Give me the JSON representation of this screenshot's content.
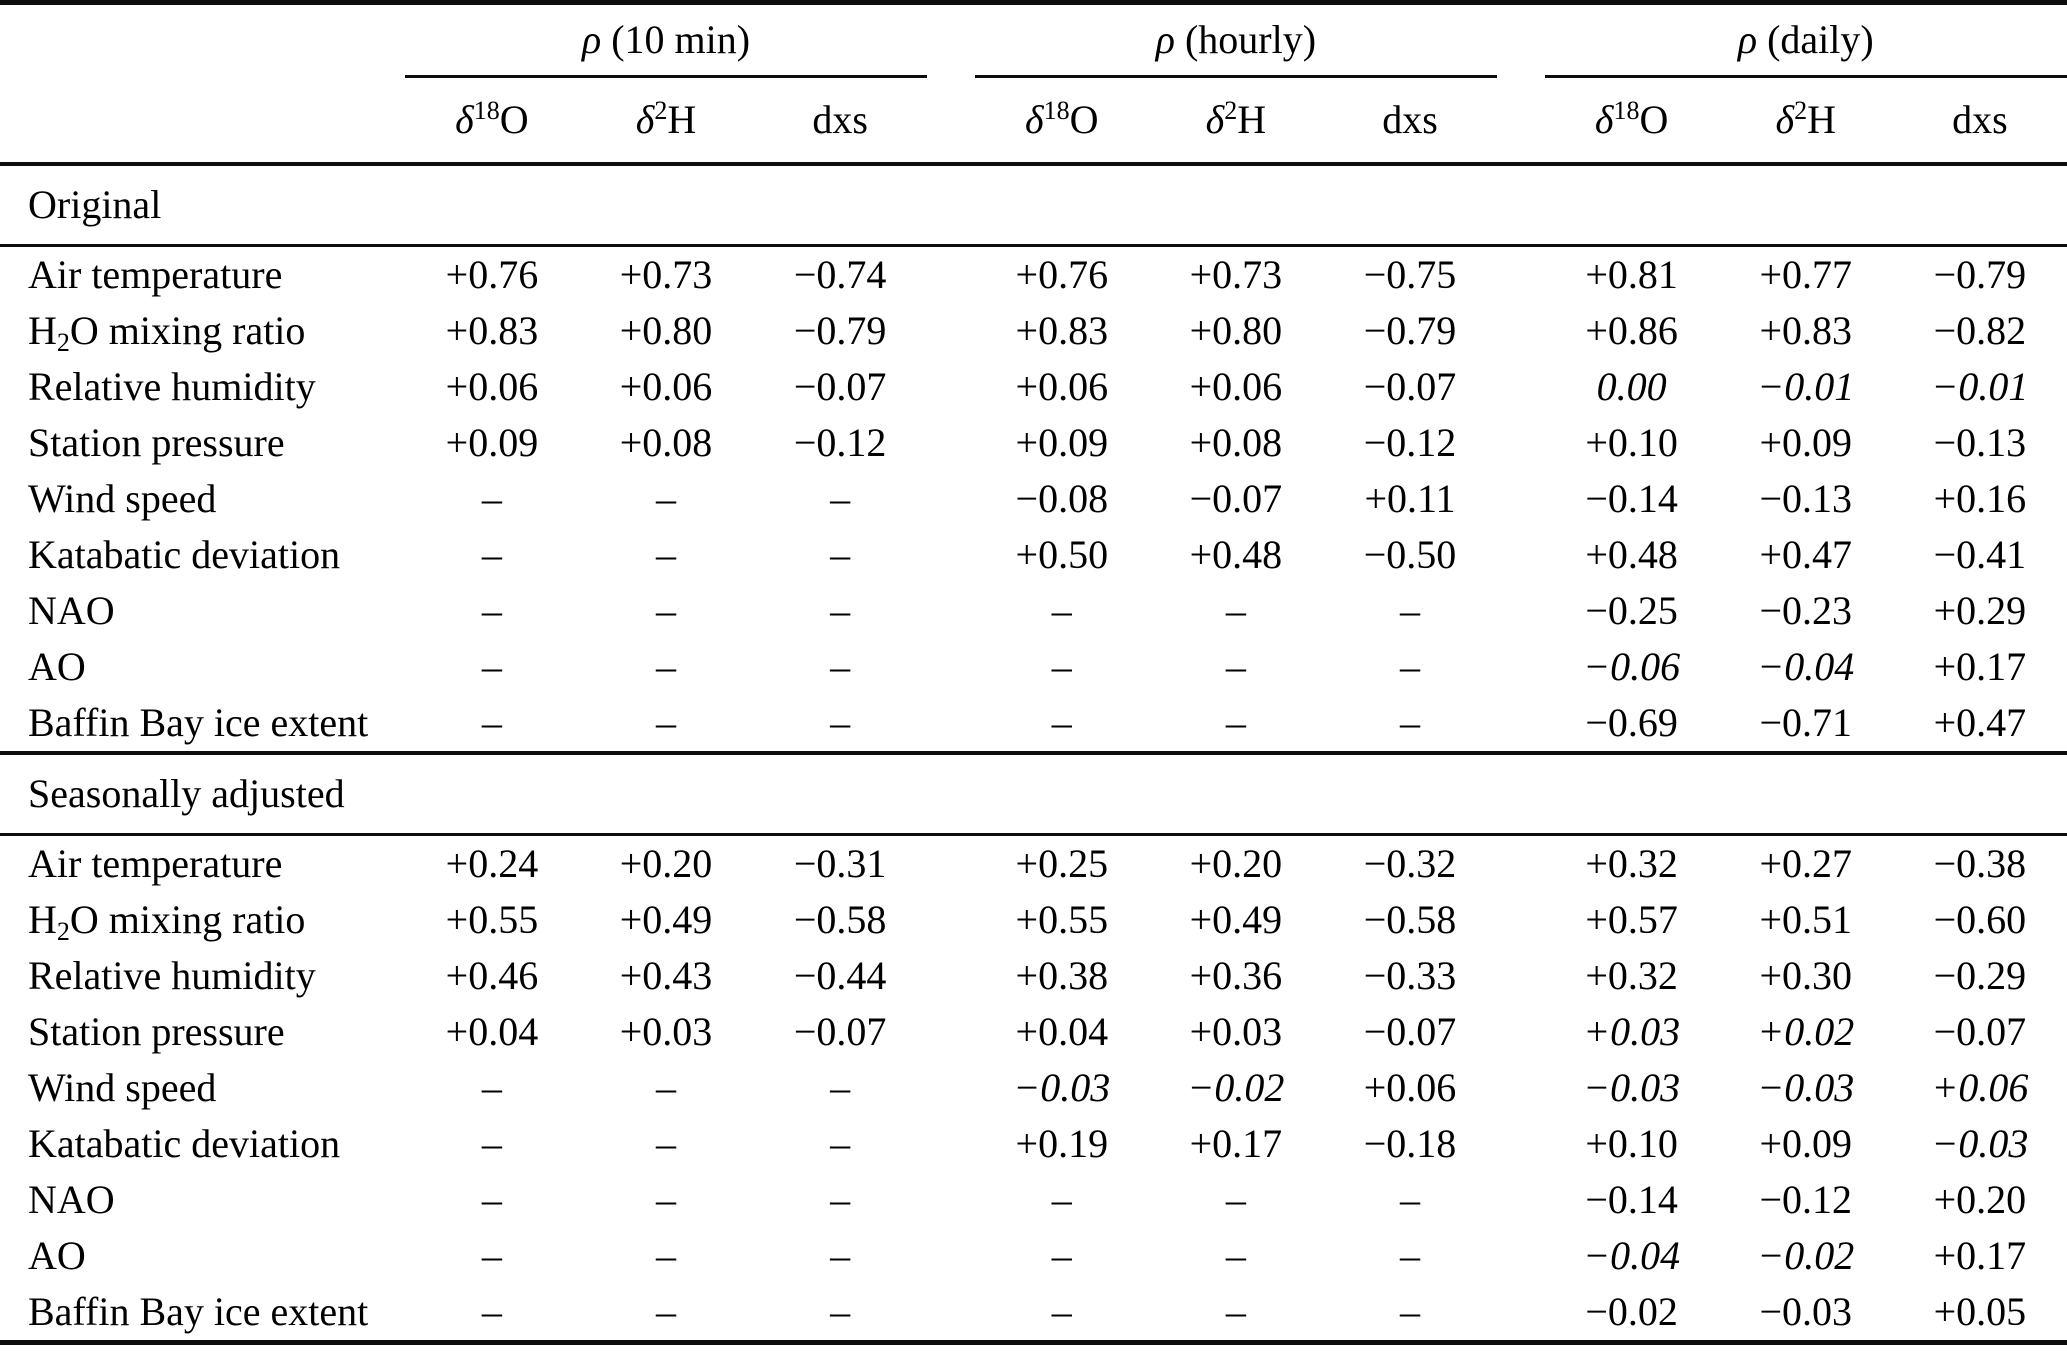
{
  "table": {
    "groups": [
      {
        "rho": "ρ",
        "rest": " (10 min)"
      },
      {
        "rho": "ρ",
        "rest": " (hourly)"
      },
      {
        "rho": "ρ",
        "rest": " (daily)"
      }
    ],
    "subcolumns": [
      {
        "pre": "δ",
        "sup": "18",
        "post": "O"
      },
      {
        "pre": "δ",
        "sup": "2",
        "post": "H"
      },
      {
        "pre": "dxs",
        "sup": "",
        "post": ""
      }
    ],
    "missing_marker": "–",
    "sections": [
      {
        "title": "Original",
        "rows": [
          {
            "label": "Air temperature",
            "cells": [
              "+0.76",
              "+0.73",
              "−0.74",
              "+0.76",
              "+0.73",
              "−0.75",
              "+0.81",
              "+0.77",
              "−0.79"
            ]
          },
          {
            "label": "H2O mixing ratio",
            "label_parts": [
              {
                "t": "H"
              },
              {
                "t": "2",
                "sub": true
              },
              {
                "t": "O mixing ratio"
              }
            ],
            "cells": [
              "+0.83",
              "+0.80",
              "−0.79",
              "+0.83",
              "+0.80",
              "−0.79",
              "+0.86",
              "+0.83",
              "−0.82"
            ]
          },
          {
            "label": "Relative humidity",
            "cells": [
              "+0.06",
              "+0.06",
              "−0.07",
              "+0.06",
              "+0.06",
              "−0.07",
              {
                "v": "0.00",
                "i": true
              },
              {
                "v": "−0.01",
                "i": true
              },
              {
                "v": "−0.01",
                "i": true
              }
            ]
          },
          {
            "label": "Station pressure",
            "cells": [
              "+0.09",
              "+0.08",
              "−0.12",
              "+0.09",
              "+0.08",
              "−0.12",
              "+0.10",
              "+0.09",
              "−0.13"
            ]
          },
          {
            "label": "Wind speed",
            "cells": [
              "–",
              "–",
              "–",
              "−0.08",
              "−0.07",
              "+0.11",
              "−0.14",
              "−0.13",
              "+0.16"
            ]
          },
          {
            "label": "Katabatic deviation",
            "cells": [
              "–",
              "–",
              "–",
              "+0.50",
              "+0.48",
              "−0.50",
              "+0.48",
              "+0.47",
              "−0.41"
            ]
          },
          {
            "label": "NAO",
            "cells": [
              "–",
              "–",
              "–",
              "–",
              "–",
              "–",
              "−0.25",
              "−0.23",
              "+0.29"
            ]
          },
          {
            "label": "AO",
            "cells": [
              "–",
              "–",
              "–",
              "–",
              "–",
              "–",
              {
                "v": "−0.06",
                "i": true
              },
              {
                "v": "−0.04",
                "i": true
              },
              "+0.17"
            ]
          },
          {
            "label": "Baffin Bay ice extent",
            "cells": [
              "–",
              "–",
              "–",
              "–",
              "–",
              "–",
              "−0.69",
              "−0.71",
              "+0.47"
            ]
          }
        ]
      },
      {
        "title": "Seasonally adjusted",
        "rows": [
          {
            "label": "Air temperature",
            "cells": [
              "+0.24",
              "+0.20",
              "−0.31",
              "+0.25",
              "+0.20",
              "−0.32",
              "+0.32",
              "+0.27",
              "−0.38"
            ]
          },
          {
            "label": "H2O mixing ratio",
            "label_parts": [
              {
                "t": "H"
              },
              {
                "t": "2",
                "sub": true
              },
              {
                "t": "O mixing ratio"
              }
            ],
            "cells": [
              "+0.55",
              "+0.49",
              "−0.58",
              "+0.55",
              "+0.49",
              "−0.58",
              "+0.57",
              "+0.51",
              "−0.60"
            ]
          },
          {
            "label": "Relative humidity",
            "cells": [
              "+0.46",
              "+0.43",
              "−0.44",
              "+0.38",
              "+0.36",
              "−0.33",
              "+0.32",
              "+0.30",
              "−0.29"
            ]
          },
          {
            "label": "Station pressure",
            "cells": [
              "+0.04",
              "+0.03",
              "−0.07",
              "+0.04",
              "+0.03",
              "−0.07",
              {
                "v": "+0.03",
                "i": true
              },
              {
                "v": "+0.02",
                "i": true
              },
              "−0.07"
            ]
          },
          {
            "label": "Wind speed",
            "cells": [
              "–",
              "–",
              "–",
              {
                "v": "−0.03",
                "i": true
              },
              {
                "v": "−0.02",
                "i": true
              },
              "+0.06",
              {
                "v": "−0.03",
                "i": true
              },
              {
                "v": "−0.03",
                "i": true
              },
              {
                "v": "+0.06",
                "i": true
              }
            ]
          },
          {
            "label": "Katabatic deviation",
            "cells": [
              "–",
              "–",
              "–",
              "+0.19",
              "+0.17",
              "−0.18",
              "+0.10",
              "+0.09",
              {
                "v": "−0.03",
                "i": true
              }
            ]
          },
          {
            "label": "NAO",
            "cells": [
              "–",
              "–",
              "–",
              "–",
              "–",
              "–",
              "−0.14",
              "−0.12",
              "+0.20"
            ]
          },
          {
            "label": "AO",
            "cells": [
              "–",
              "–",
              "–",
              "–",
              "–",
              "–",
              {
                "v": "−0.04",
                "i": true
              },
              {
                "v": "−0.02",
                "i": true
              },
              "+0.17"
            ]
          },
          {
            "label": "Baffin Bay ice extent",
            "cells": [
              "–",
              "–",
              "–",
              "–",
              "–",
              "–",
              "−0.02",
              "−0.03",
              "+0.05"
            ]
          }
        ]
      }
    ]
  }
}
